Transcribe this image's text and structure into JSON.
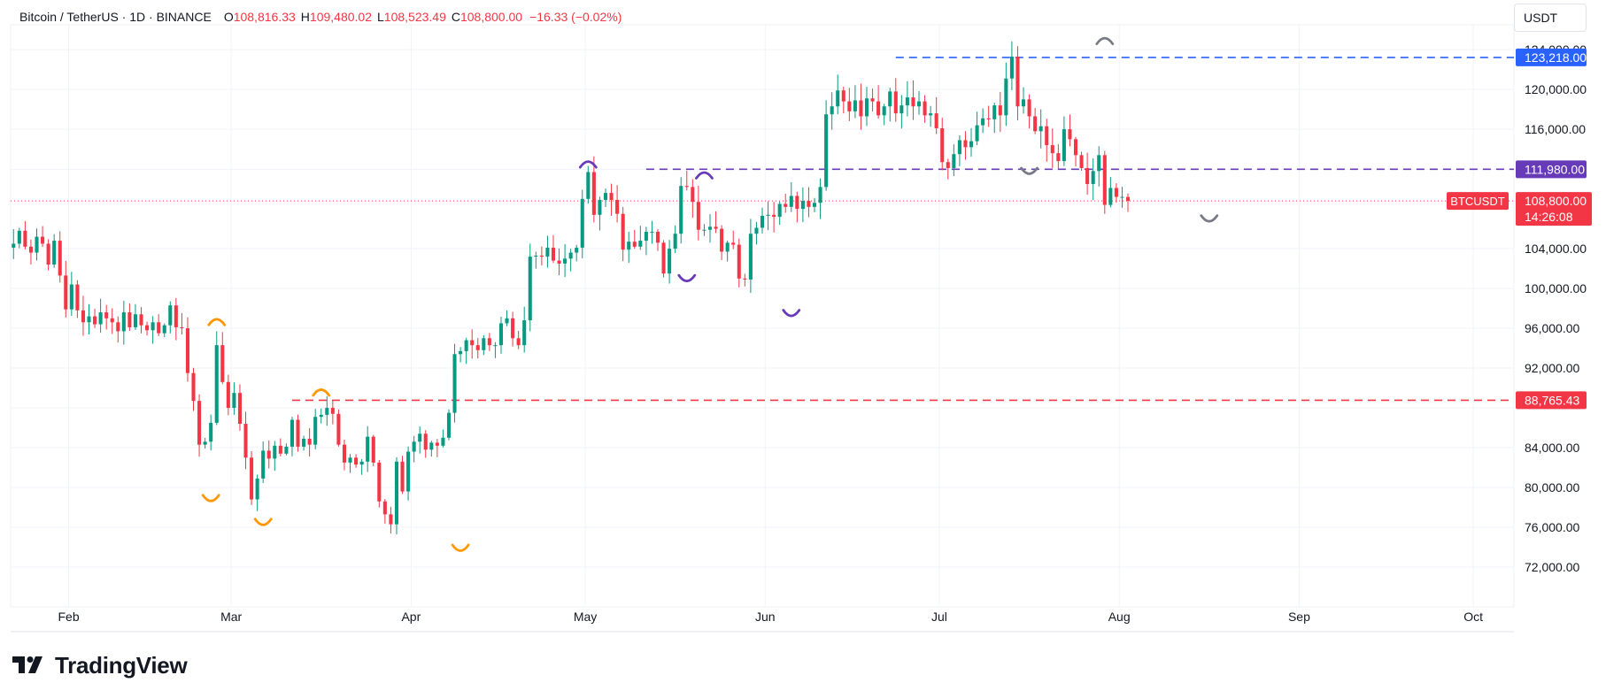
{
  "header": {
    "symbol": "Bitcoin / TetherUS · 1D · BINANCE",
    "open_label": "O",
    "open": "108,816.33",
    "high_label": "H",
    "high": "109,480.02",
    "low_label": "L",
    "low": "108,523.49",
    "close_label": "C",
    "close": "108,800.00",
    "change": "−16.33 (−0.02%)"
  },
  "currency": "USDT",
  "brand": "TradingView",
  "colors": {
    "up": "#089981",
    "down": "#f23645",
    "level_blue": "#2962ff",
    "level_purple": "#673ab7",
    "level_red": "#f23645",
    "marker_orange": "#ff9800",
    "marker_purple": "#673ab7",
    "marker_gray": "#787b86"
  },
  "chart_data": {
    "type": "candlestick",
    "y_axis": {
      "min": 68000,
      "max": 126500,
      "ticks": [
        124000,
        120000,
        116000,
        111980,
        104000,
        100000,
        96000,
        92000,
        88000,
        84000,
        80000,
        76000,
        72000
      ],
      "tick_labels": [
        "124,000.00",
        "120,000.00",
        "116,000.00",
        "",
        "104,000.00",
        "100,000.00",
        "96,000.00",
        "92,000.00",
        "",
        "84,000.00",
        "80,000.00",
        "76,000.00",
        "72,000.00"
      ]
    },
    "x_axis": {
      "labels": [
        {
          "text": "Feb",
          "date": "2025-02-01"
        },
        {
          "text": "Mar",
          "date": "2025-03-01"
        },
        {
          "text": "Apr",
          "date": "2025-04-01"
        },
        {
          "text": "May",
          "date": "2025-05-01"
        },
        {
          "text": "Jun",
          "date": "2025-06-01"
        },
        {
          "text": "Jul",
          "date": "2025-07-01"
        },
        {
          "text": "Aug",
          "date": "2025-08-01"
        },
        {
          "text": "Sep",
          "date": "2025-09-01"
        },
        {
          "text": "Oct",
          "date": "2025-10-01"
        }
      ],
      "first_date": "2025-01-22",
      "last_date": "2025-10-08"
    },
    "grid": true,
    "closes": [
      104500,
      105800,
      104200,
      103600,
      105200,
      104500,
      102400,
      104800,
      101300,
      97900,
      100400,
      97800,
      96600,
      97200,
      96400,
      97600,
      97000,
      96600,
      95700,
      97600,
      96100,
      97400,
      96300,
      95800,
      96600,
      95500,
      96300,
      98300,
      96100,
      96000,
      91500,
      88700,
      84300,
      84600,
      86500,
      94300,
      90600,
      88000,
      89500,
      86400,
      83000,
      78800,
      80900,
      83700,
      82900,
      84200,
      83400,
      84100,
      86800,
      84100,
      84900,
      84300,
      87100,
      87300,
      88000,
      87400,
      84300,
      82500,
      83000,
      82300,
      82600,
      85100,
      82500,
      78600,
      77300,
      76300,
      82600,
      79600,
      83600,
      84600,
      85400,
      83800,
      84500,
      84200,
      85000,
      87500,
      93400,
      93700,
      94800,
      94300,
      93800,
      95000,
      94300,
      94300,
      96500,
      97000,
      95000,
      94300,
      96800,
      103200,
      103300,
      103200,
      104100,
      102800,
      102500,
      103000,
      103600,
      104100,
      109000,
      111700,
      107400,
      108900,
      109600,
      108900,
      107500,
      103900,
      104700,
      104200,
      104800,
      105700,
      105700,
      104600,
      101500,
      104000,
      105500,
      110300,
      110200,
      108700,
      105900,
      105900,
      106200,
      106000,
      103700,
      104600,
      104400,
      101000,
      100900,
      105500,
      106100,
      107300,
      107400,
      107200,
      108500,
      108200,
      109300,
      108000,
      108800,
      108200,
      108600,
      110200,
      117500,
      118300,
      119900,
      118800,
      117800,
      118900,
      117300,
      119100,
      118800,
      117400,
      118300,
      119800,
      117600,
      118400,
      119200,
      118300,
      118800,
      117400,
      117600,
      116100,
      112700,
      112100,
      113500,
      114900,
      114200,
      114800,
      116400,
      117100,
      117000,
      118400,
      117400,
      121100,
      123300,
      118300,
      119000,
      117300,
      115800,
      116300,
      114400,
      113600,
      112800,
      116000,
      115000,
      113400,
      112100,
      110500,
      111800,
      113400,
      108400,
      110100,
      109200,
      109200,
      108800
    ]
  },
  "levels": [
    {
      "price": 123218,
      "label": "123,218.00",
      "color_key": "level_blue"
    },
    {
      "price": 111980,
      "label": "111,980.00",
      "color_key": "level_purple"
    },
    {
      "price": 88765.43,
      "label": "88,765.43",
      "color_key": "level_red"
    }
  ],
  "last_price": {
    "symbol_tag": "BTCUSDT",
    "price": 108800,
    "label": "108,800.00",
    "countdown": "14:26:08"
  }
}
